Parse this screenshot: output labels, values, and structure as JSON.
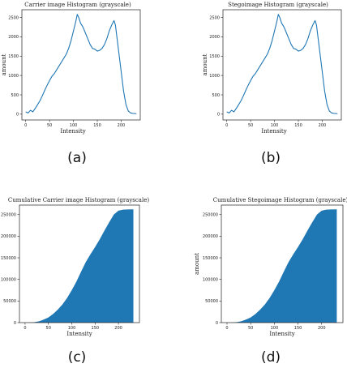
{
  "chart_data": [
    {
      "id": "a",
      "type": "line",
      "title": "Carrier image Histogram (grayscale)",
      "xlabel": "Intensity",
      "ylabel": "amount",
      "caption": "(a)",
      "xlim": [
        -8,
        240
      ],
      "ylim": [
        -150,
        2700
      ],
      "xticks": [
        0,
        50,
        100,
        150,
        200
      ],
      "yticks": [
        0,
        500,
        1000,
        1500,
        2000,
        2500
      ],
      "color": "#1f77b4",
      "grid": false,
      "legend": "none",
      "series": [
        {
          "x": [
            0,
            5,
            10,
            15,
            20,
            25,
            30,
            35,
            40,
            45,
            50,
            55,
            60,
            65,
            70,
            75,
            80,
            85,
            90,
            95,
            100,
            105,
            108,
            111,
            115,
            120,
            125,
            130,
            135,
            140,
            145,
            150,
            155,
            160,
            165,
            170,
            175,
            180,
            185,
            188,
            191,
            195,
            200,
            205,
            210,
            215,
            220,
            225,
            230,
            232
          ],
          "y": [
            60,
            30,
            100,
            60,
            150,
            250,
            350,
            480,
            620,
            750,
            870,
            980,
            1050,
            1150,
            1250,
            1350,
            1450,
            1550,
            1700,
            1900,
            2150,
            2400,
            2580,
            2500,
            2350,
            2250,
            2100,
            1950,
            1800,
            1700,
            1680,
            1630,
            1650,
            1700,
            1800,
            1950,
            2150,
            2300,
            2420,
            2300,
            2000,
            1600,
            1100,
            600,
            250,
            80,
            30,
            20,
            15,
            10
          ]
        }
      ]
    },
    {
      "id": "b",
      "type": "line",
      "title": "Stegoimage Histogram (grayscale)",
      "xlabel": "Intensity",
      "ylabel": "amount",
      "caption": "(b)",
      "xlim": [
        -8,
        240
      ],
      "ylim": [
        -150,
        2700
      ],
      "xticks": [
        0,
        50,
        100,
        150,
        200
      ],
      "yticks": [
        0,
        500,
        1000,
        1500,
        2000,
        2500
      ],
      "color": "#1f77b4",
      "grid": false,
      "legend": "none",
      "series": [
        {
          "x": [
            0,
            5,
            10,
            15,
            20,
            25,
            30,
            35,
            40,
            45,
            50,
            55,
            60,
            65,
            70,
            75,
            80,
            85,
            90,
            95,
            100,
            105,
            108,
            111,
            115,
            120,
            125,
            130,
            135,
            140,
            145,
            150,
            155,
            160,
            165,
            170,
            175,
            180,
            185,
            188,
            191,
            195,
            200,
            205,
            210,
            215,
            220,
            225,
            230,
            232
          ],
          "y": [
            60,
            30,
            100,
            60,
            150,
            250,
            350,
            480,
            620,
            750,
            870,
            980,
            1050,
            1150,
            1250,
            1350,
            1450,
            1550,
            1700,
            1900,
            2150,
            2400,
            2580,
            2500,
            2350,
            2250,
            2100,
            1950,
            1800,
            1700,
            1680,
            1630,
            1650,
            1700,
            1800,
            1950,
            2150,
            2300,
            2420,
            2300,
            2000,
            1600,
            1100,
            600,
            250,
            80,
            30,
            20,
            15,
            10
          ]
        }
      ]
    },
    {
      "id": "c",
      "type": "area",
      "title": "Cumulative Carrier image Histogram (grayscale)",
      "xlabel": "Intensity",
      "ylabel": "",
      "caption": "(c)",
      "xlim": [
        -12,
        245
      ],
      "ylim": [
        0,
        272000
      ],
      "xticks": [
        0,
        50,
        100,
        150,
        200
      ],
      "yticks": [
        0,
        50000,
        100000,
        150000,
        200000,
        250000
      ],
      "color": "#1f77b4",
      "grid": false,
      "legend": "none",
      "series": [
        {
          "x": [
            0,
            10,
            20,
            30,
            40,
            50,
            60,
            70,
            80,
            90,
            100,
            110,
            120,
            130,
            140,
            150,
            160,
            170,
            180,
            190,
            200,
            210,
            220,
            232
          ],
          "y": [
            0,
            200,
            1000,
            3000,
            7000,
            12000,
            20000,
            30000,
            42000,
            57000,
            75000,
            95000,
            118000,
            140000,
            158000,
            175000,
            193000,
            213000,
            232000,
            250000,
            259000,
            261500,
            262000,
            262144
          ]
        }
      ]
    },
    {
      "id": "d",
      "type": "area",
      "title": "Cumulative Stegoimage Histogram (grayscale)",
      "xlabel": "Intensity",
      "ylabel": "amount",
      "caption": "(d)",
      "xlim": [
        -12,
        245
      ],
      "ylim": [
        0,
        272000
      ],
      "xticks": [
        0,
        50,
        100,
        150,
        200
      ],
      "yticks": [
        0,
        50000,
        100000,
        150000,
        200000,
        250000
      ],
      "color": "#1f77b4",
      "grid": false,
      "legend": "none",
      "series": [
        {
          "x": [
            0,
            10,
            20,
            30,
            40,
            50,
            60,
            70,
            80,
            90,
            100,
            110,
            120,
            130,
            140,
            150,
            160,
            170,
            180,
            190,
            200,
            210,
            220,
            232
          ],
          "y": [
            0,
            200,
            1000,
            3000,
            7000,
            12000,
            20000,
            30000,
            42000,
            57000,
            75000,
            95000,
            118000,
            140000,
            158000,
            175000,
            193000,
            213000,
            232000,
            250000,
            259000,
            261500,
            262000,
            262144
          ]
        }
      ]
    }
  ]
}
